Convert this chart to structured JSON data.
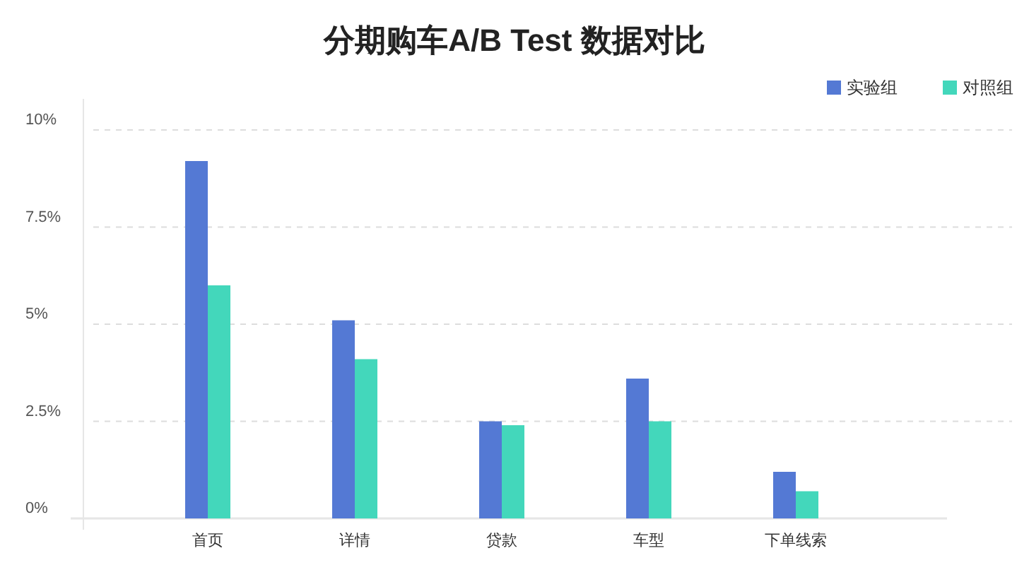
{
  "chart_data": {
    "type": "bar",
    "title": "分期购车A/B Test 数据对比",
    "categories": [
      "首页",
      "详情",
      "贷款",
      "车型",
      "下单线索"
    ],
    "series": [
      {
        "name": "实验组",
        "color": "#5479d4",
        "values": [
          9.2,
          5.1,
          2.5,
          3.6,
          1.2
        ]
      },
      {
        "name": "对照组",
        "color": "#43d7bb",
        "values": [
          6.0,
          4.1,
          2.4,
          2.5,
          0.7
        ]
      }
    ],
    "ylim": [
      0,
      10.8
    ],
    "yticks": [
      {
        "value": 0,
        "label": "0%"
      },
      {
        "value": 2.5,
        "label": "2.5%"
      },
      {
        "value": 5,
        "label": "5%"
      },
      {
        "value": 7.5,
        "label": "7.5%"
      },
      {
        "value": 10,
        "label": "10%"
      }
    ],
    "grid": "y",
    "legend": "top right"
  }
}
